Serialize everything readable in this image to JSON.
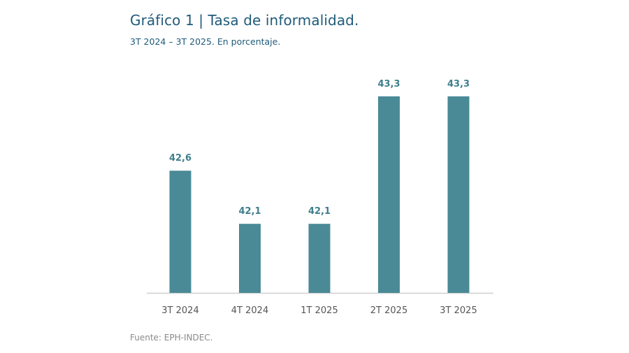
{
  "chart_data": {
    "type": "bar",
    "title": "Gráfico 1 | Tasa de informalidad.",
    "subtitle": "3T 2024 – 3T 2025. En porcentaje.",
    "source": "Fuente: EPH-INDEC.",
    "categories": [
      "3T 2024",
      "4T 2024",
      "1T 2025",
      "2T 2025",
      "3T 2025"
    ],
    "values": [
      42.6,
      42.1,
      42.1,
      43.3,
      43.3
    ],
    "data_labels": [
      "42,6",
      "42,1",
      "42,1",
      "43,3",
      "43,3"
    ],
    "xlabel": "",
    "ylabel": "",
    "ylim": [
      41.45,
      43.4
    ],
    "grid": false,
    "colors": {
      "bar": "#4a8a96",
      "label": "#3f7f8c",
      "title": "#1f5a7a"
    }
  }
}
